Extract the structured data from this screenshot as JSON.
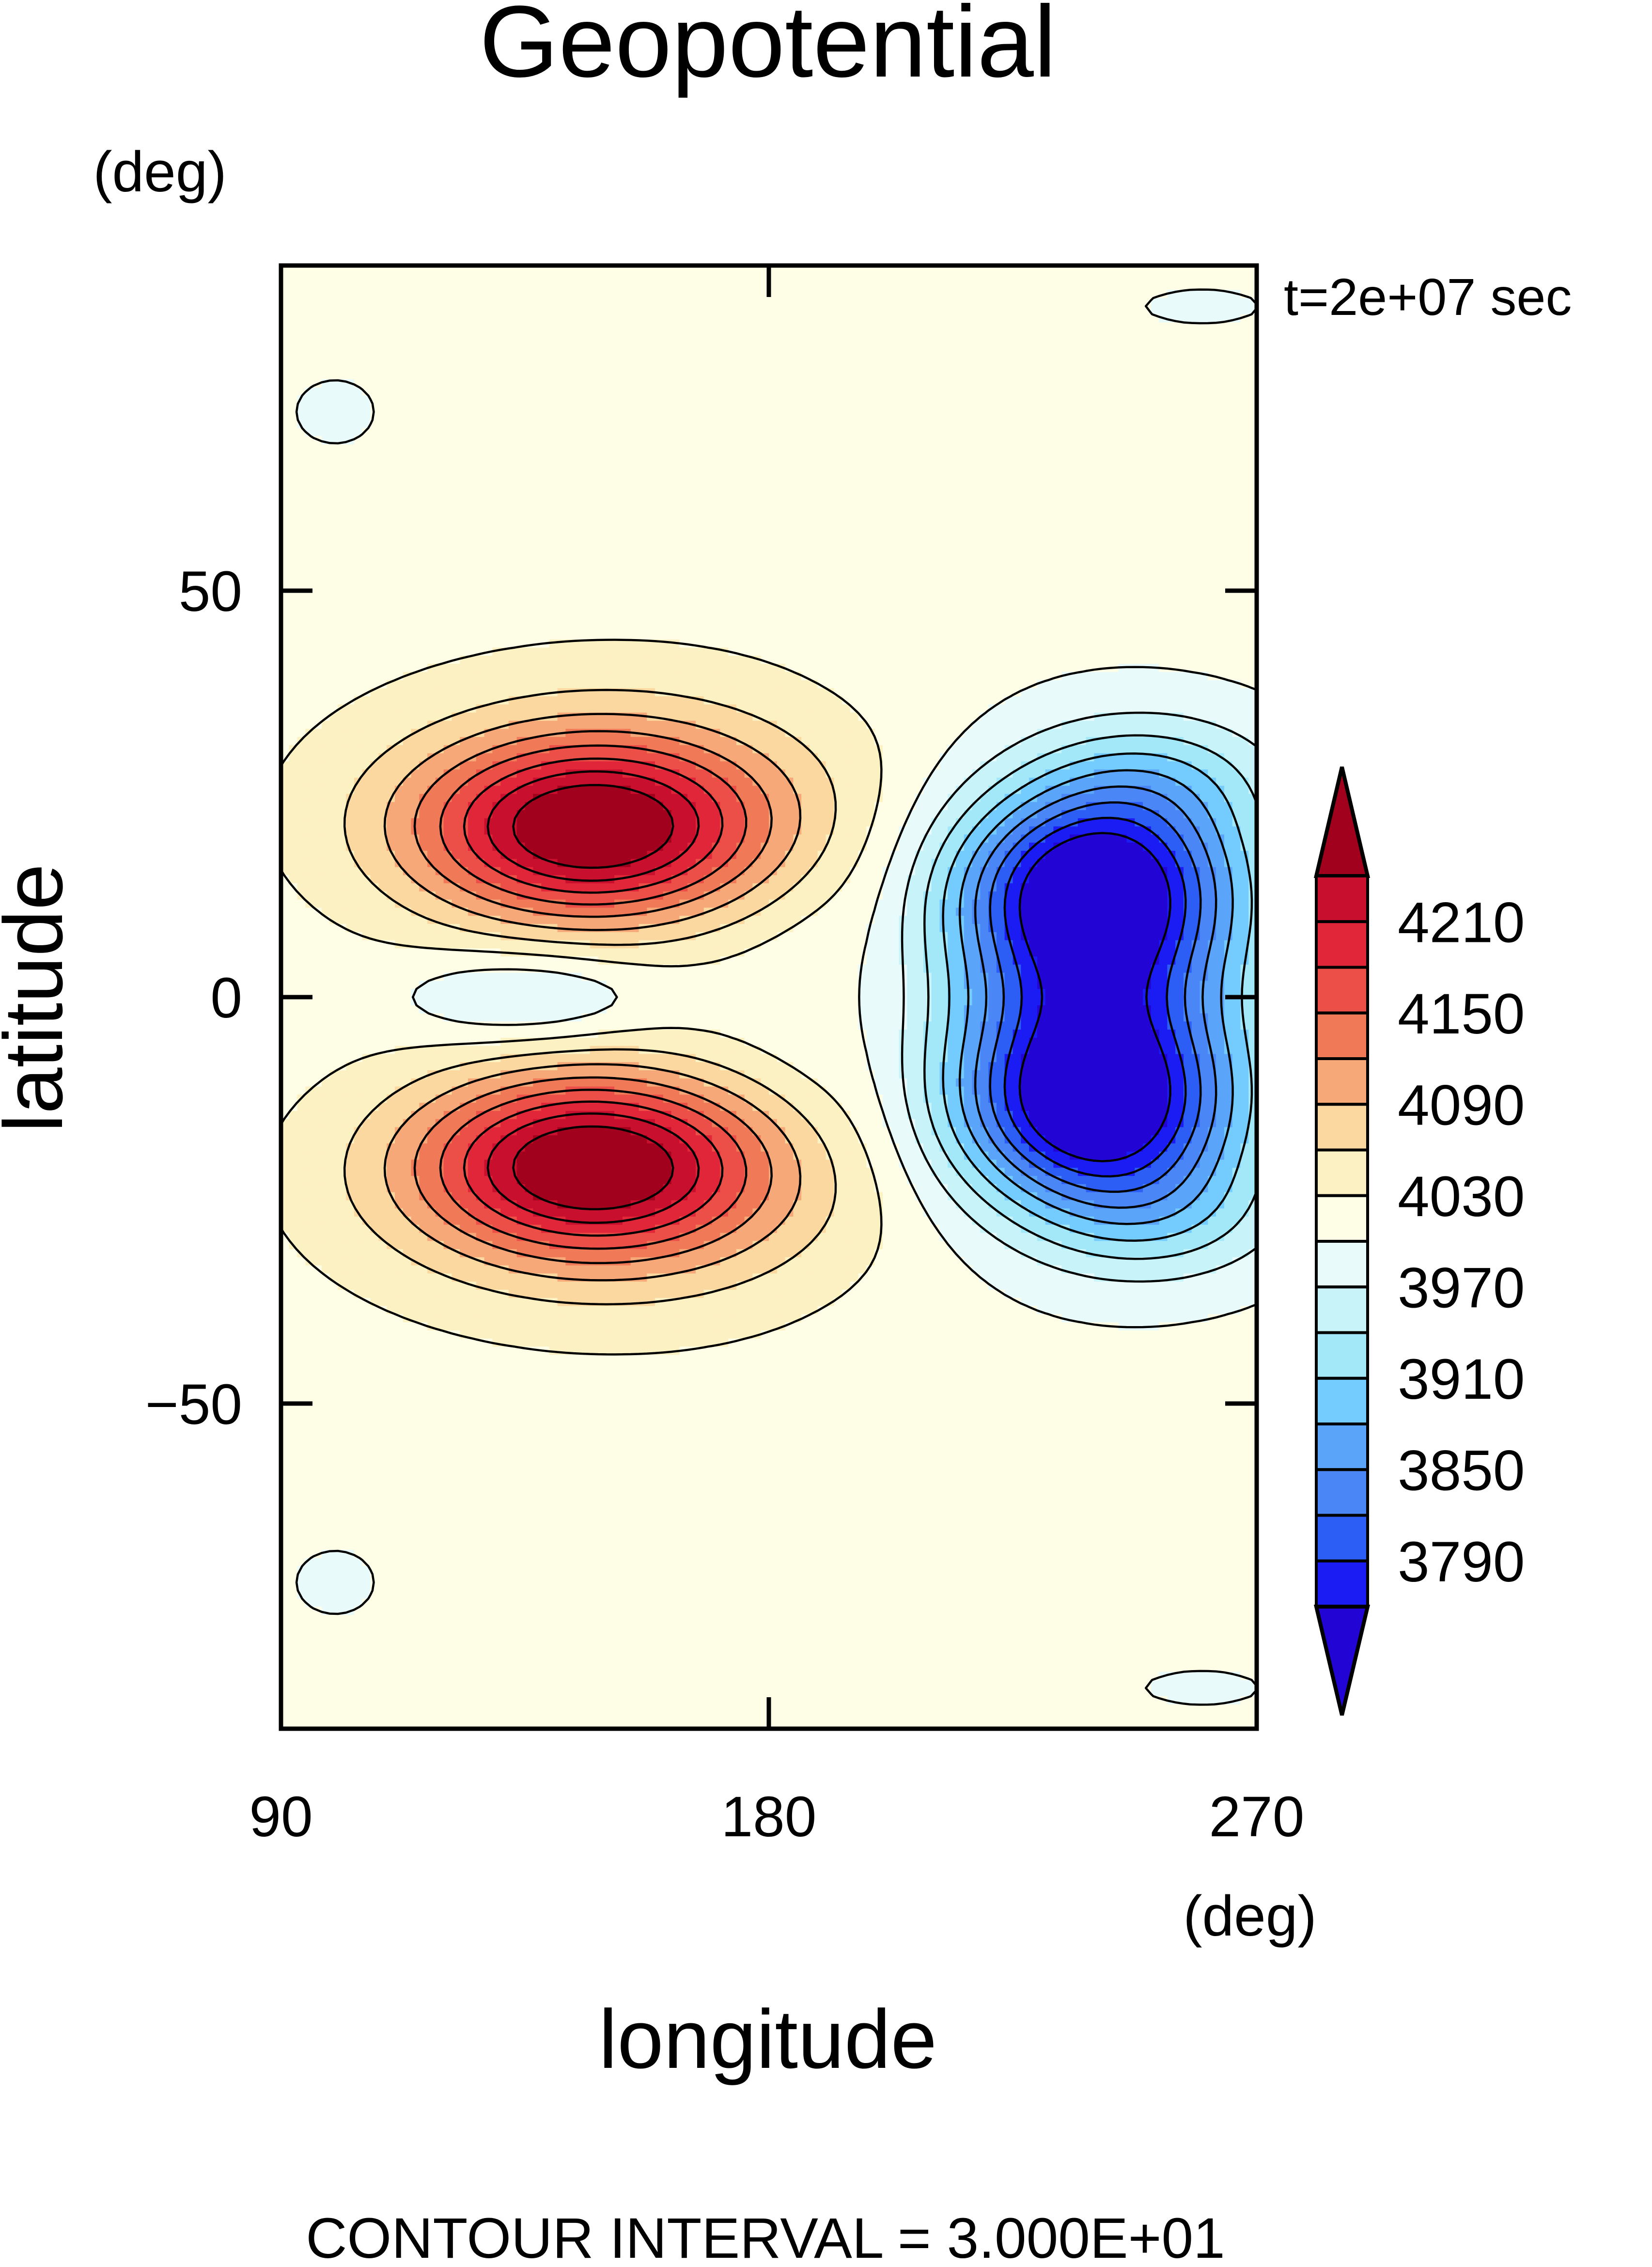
{
  "chart_data": {
    "type": "contour",
    "title": "Geopotential",
    "xlabel": "longitude",
    "ylabel": "latitude",
    "x_unit": "(deg)",
    "y_unit": "(deg)",
    "time_label": "t=2e+07 sec",
    "footer": "CONTOUR INTERVAL = 3.000E+01",
    "xlim": [
      90,
      270
    ],
    "ylim": [
      -90,
      90
    ],
    "x_ticks": [
      90,
      180,
      270
    ],
    "x_tick_labels": [
      "90",
      "180",
      "270"
    ],
    "y_ticks": [
      50,
      0,
      -50
    ],
    "y_tick_labels": [
      "50",
      "0",
      "−50"
    ],
    "grid": false,
    "contour_interval": 30,
    "colorbar": {
      "levels": [
        3760,
        3790,
        3820,
        3850,
        3880,
        3910,
        3940,
        3970,
        4000,
        4030,
        4060,
        4090,
        4120,
        4150,
        4180,
        4210,
        4240
      ],
      "labels": [
        "3790",
        "3850",
        "3910",
        "3970",
        "4030",
        "4090",
        "4150",
        "4210"
      ],
      "label_values": [
        3790,
        3850,
        3910,
        3970,
        4030,
        4090,
        4150,
        4210
      ],
      "colors": [
        "#2205d4",
        "#1b1cf4",
        "#2c5ef5",
        "#4a86f6",
        "#5aa5f9",
        "#74cbfd",
        "#a3e8f9",
        "#c8f4f9",
        "#e8fbfa",
        "#fefde6",
        "#fcf1c2",
        "#fbd8a0",
        "#f6a878",
        "#f07a58",
        "#ec4f47",
        "#e1263a",
        "#c80f2e",
        "#a2011e"
      ]
    },
    "field": {
      "description_free": true,
      "background": 4030,
      "features": [
        {
          "kind": "high",
          "lon": 150,
          "lat": 20,
          "value": 4250
        },
        {
          "kind": "high",
          "lon": 150,
          "lat": -20,
          "value": 4250
        },
        {
          "kind": "low",
          "lon": 240,
          "lat": 14,
          "value": 3760
        },
        {
          "kind": "low",
          "lon": 240,
          "lat": -14,
          "value": 3760
        },
        {
          "kind": "low",
          "lon": 135,
          "lat": 0,
          "value": 3980
        }
      ]
    }
  }
}
